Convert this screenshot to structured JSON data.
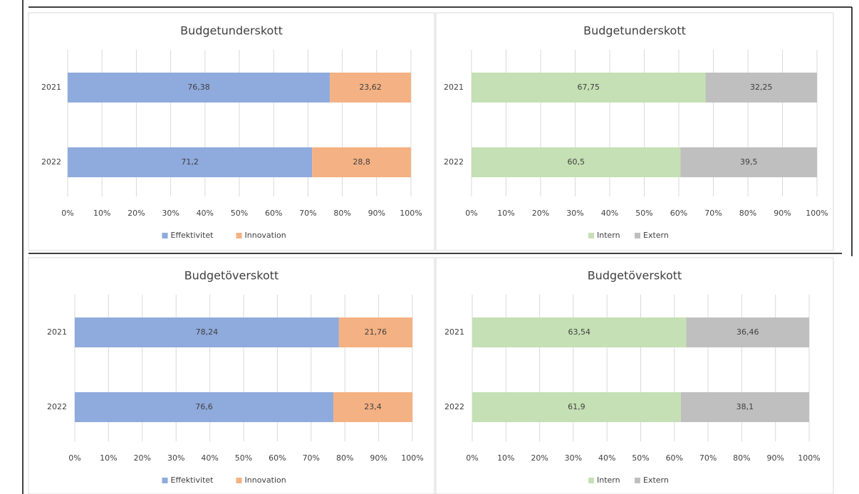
{
  "chart_data": [
    {
      "type": "stacked-bar-horizontal",
      "title": "Budgetunderskott",
      "categories": [
        "2021",
        "2022"
      ],
      "series": [
        {
          "name": "Effektivitet",
          "color": "#8faadc",
          "values": [
            76.38,
            71.2
          ],
          "value_labels": [
            "76,38",
            "71,2"
          ]
        },
        {
          "name": "Innovation",
          "color": "#f4b183",
          "values": [
            23.62,
            28.8
          ],
          "value_labels": [
            "23,62",
            "28,8"
          ]
        }
      ],
      "xlim": [
        0,
        100
      ],
      "xticks": [
        {
          "value": 0,
          "label": "0%"
        },
        {
          "value": 10,
          "label": "10%"
        },
        {
          "value": 20,
          "label": "20%"
        },
        {
          "value": 30,
          "label": "30%"
        },
        {
          "value": 40,
          "label": "40%"
        },
        {
          "value": 50,
          "label": "50%"
        },
        {
          "value": 60,
          "label": "60%"
        },
        {
          "value": 70,
          "label": "70%"
        },
        {
          "value": 80,
          "label": "80%"
        },
        {
          "value": 90,
          "label": "90%"
        },
        {
          "value": 100,
          "label": "100%"
        }
      ],
      "grid": true,
      "legend": "bottom"
    },
    {
      "type": "stacked-bar-horizontal",
      "title": "Budgetunderskott",
      "categories": [
        "2021",
        "2022"
      ],
      "series": [
        {
          "name": "Intern",
          "color": "#c5e0b4",
          "values": [
            67.75,
            60.5
          ],
          "value_labels": [
            "67,75",
            "60,5"
          ]
        },
        {
          "name": "Extern",
          "color": "#bfbfbf",
          "values": [
            32.25,
            39.5
          ],
          "value_labels": [
            "32,25",
            "39,5"
          ]
        }
      ],
      "xlim": [
        0,
        100
      ],
      "xticks": [
        {
          "value": 0,
          "label": "0%"
        },
        {
          "value": 10,
          "label": "10%"
        },
        {
          "value": 20,
          "label": "20%"
        },
        {
          "value": 30,
          "label": "30%"
        },
        {
          "value": 40,
          "label": "40%"
        },
        {
          "value": 50,
          "label": "50%"
        },
        {
          "value": 60,
          "label": "60%"
        },
        {
          "value": 70,
          "label": "70%"
        },
        {
          "value": 80,
          "label": "80%"
        },
        {
          "value": 90,
          "label": "90%"
        },
        {
          "value": 100,
          "label": "100%"
        }
      ],
      "grid": true,
      "legend": "bottom"
    },
    {
      "type": "stacked-bar-horizontal",
      "title": "Budgetöverskott",
      "categories": [
        "2021",
        "2022"
      ],
      "series": [
        {
          "name": "Effektivitet",
          "color": "#8faadc",
          "values": [
            78.24,
            76.6
          ],
          "value_labels": [
            "78,24",
            "76,6"
          ]
        },
        {
          "name": "Innovation",
          "color": "#f4b183",
          "values": [
            21.76,
            23.4
          ],
          "value_labels": [
            "21,76",
            "23,4"
          ]
        }
      ],
      "xlim": [
        0,
        100
      ],
      "xticks": [
        {
          "value": 0,
          "label": "0%"
        },
        {
          "value": 10,
          "label": "10%"
        },
        {
          "value": 20,
          "label": "20%"
        },
        {
          "value": 30,
          "label": "30%"
        },
        {
          "value": 40,
          "label": "40%"
        },
        {
          "value": 50,
          "label": "50%"
        },
        {
          "value": 60,
          "label": "60%"
        },
        {
          "value": 70,
          "label": "70%"
        },
        {
          "value": 80,
          "label": "80%"
        },
        {
          "value": 90,
          "label": "90%"
        },
        {
          "value": 100,
          "label": "100%"
        }
      ],
      "grid": true,
      "legend": "bottom"
    },
    {
      "type": "stacked-bar-horizontal",
      "title": "Budgetöverskott",
      "categories": [
        "2021",
        "2022"
      ],
      "series": [
        {
          "name": "Intern",
          "color": "#c5e0b4",
          "values": [
            63.54,
            61.9
          ],
          "value_labels": [
            "63,54",
            "61,9"
          ]
        },
        {
          "name": "Extern",
          "color": "#bfbfbf",
          "values": [
            36.46,
            38.1
          ],
          "value_labels": [
            "36,46",
            "38,1"
          ]
        }
      ],
      "xlim": [
        0,
        100
      ],
      "xticks": [
        {
          "value": 0,
          "label": "0%"
        },
        {
          "value": 10,
          "label": "10%"
        },
        {
          "value": 20,
          "label": "20%"
        },
        {
          "value": 30,
          "label": "30%"
        },
        {
          "value": 40,
          "label": "40%"
        },
        {
          "value": 50,
          "label": "50%"
        },
        {
          "value": 60,
          "label": "60%"
        },
        {
          "value": 70,
          "label": "70%"
        },
        {
          "value": 80,
          "label": "80%"
        },
        {
          "value": 90,
          "label": "90%"
        },
        {
          "value": 100,
          "label": "100%"
        }
      ],
      "grid": true,
      "legend": "bottom"
    }
  ]
}
